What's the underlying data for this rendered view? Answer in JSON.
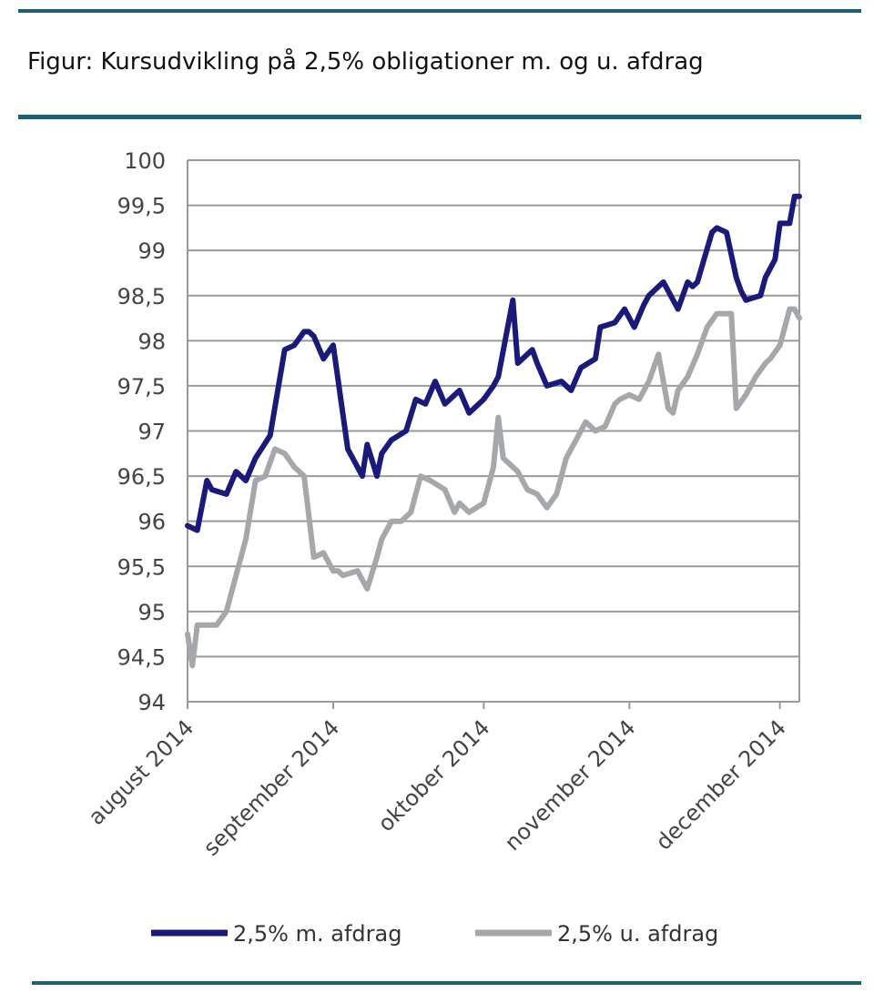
{
  "title": "Figur: Kursudvikling på 2,5% obligationer m. og u. afdrag",
  "chart_data": {
    "type": "line",
    "title": "Figur: Kursudvikling på 2,5% obligationer m. og u. afdrag",
    "xlabel": "",
    "ylabel": "",
    "ylim": [
      94,
      100
    ],
    "yticks": [
      {
        "value": 94,
        "label": "94"
      },
      {
        "value": 94.5,
        "label": "94,5"
      },
      {
        "value": 95,
        "label": "95"
      },
      {
        "value": 95.5,
        "label": "95,5"
      },
      {
        "value": 96,
        "label": "96"
      },
      {
        "value": 96.5,
        "label": "96,5"
      },
      {
        "value": 97,
        "label": "97"
      },
      {
        "value": 97.5,
        "label": "97,5"
      },
      {
        "value": 98,
        "label": "98"
      },
      {
        "value": 98.5,
        "label": "98,5"
      },
      {
        "value": 99,
        "label": "99"
      },
      {
        "value": 99.5,
        "label": "99,5"
      },
      {
        "value": 100,
        "label": "100"
      }
    ],
    "xlim": [
      0,
      126
    ],
    "xticks": [
      {
        "value": 0,
        "label": "august 2014"
      },
      {
        "value": 30,
        "label": "september 2014"
      },
      {
        "value": 61,
        "label": "oktober 2014"
      },
      {
        "value": 91,
        "label": "november 2014"
      },
      {
        "value": 122,
        "label": "december 2014"
      }
    ],
    "grid": true,
    "legend_position": "bottom",
    "series": [
      {
        "name": "2,5% m. afdrag",
        "color": "#1a1a7a",
        "x": [
          0,
          2,
          4,
          5,
          8,
          10,
          12,
          14,
          17,
          20,
          22,
          24,
          25,
          26,
          28,
          30,
          33,
          35,
          36,
          37,
          39,
          40,
          42,
          45,
          47,
          49,
          51,
          53,
          56,
          58,
          61,
          63,
          64,
          67,
          68,
          71,
          72,
          74,
          77,
          79,
          81,
          84,
          85,
          88,
          90,
          92,
          94,
          95,
          97,
          98,
          101,
          103,
          104,
          105,
          108,
          109,
          111,
          113,
          114,
          115,
          118,
          119,
          121,
          122,
          124,
          125,
          126
        ],
        "values": [
          95.95,
          95.9,
          96.45,
          96.35,
          96.3,
          96.55,
          96.45,
          96.7,
          96.95,
          97.9,
          97.95,
          98.1,
          98.1,
          98.05,
          97.8,
          97.95,
          96.8,
          96.6,
          96.5,
          96.85,
          96.5,
          96.75,
          96.9,
          97.0,
          97.35,
          97.3,
          97.55,
          97.3,
          97.45,
          97.2,
          97.35,
          97.5,
          97.6,
          98.45,
          97.75,
          97.9,
          97.75,
          97.5,
          97.55,
          97.45,
          97.7,
          97.8,
          98.15,
          98.2,
          98.35,
          98.15,
          98.4,
          98.5,
          98.6,
          98.65,
          98.35,
          98.65,
          98.6,
          98.65,
          99.2,
          99.25,
          99.2,
          98.7,
          98.55,
          98.45,
          98.5,
          98.7,
          98.9,
          99.3,
          99.3,
          99.6,
          99.6
        ]
      },
      {
        "name": "2,5% u. afdrag",
        "color": "#a5a8aa",
        "x": [
          0,
          1,
          2,
          3,
          6,
          8,
          10,
          12,
          14,
          16,
          18,
          20,
          22,
          24,
          26,
          28,
          30,
          31,
          32,
          35,
          37,
          39,
          40,
          42,
          44,
          46,
          48,
          50,
          53,
          55,
          56,
          58,
          61,
          63,
          64,
          65,
          66,
          68,
          70,
          72,
          74,
          76,
          78,
          80,
          82,
          84,
          86,
          88,
          89,
          91,
          93,
          95,
          97,
          99,
          100,
          101,
          103,
          105,
          107,
          109,
          110,
          112,
          113,
          115,
          117,
          119,
          120,
          122,
          124,
          125,
          126
        ],
        "values": [
          94.75,
          94.4,
          94.85,
          94.85,
          94.85,
          95.0,
          95.4,
          95.8,
          96.45,
          96.5,
          96.8,
          96.75,
          96.6,
          96.5,
          95.6,
          95.65,
          95.45,
          95.45,
          95.4,
          95.45,
          95.25,
          95.6,
          95.8,
          96.0,
          96.0,
          96.1,
          96.5,
          96.45,
          96.35,
          96.1,
          96.2,
          96.1,
          96.2,
          96.6,
          97.15,
          96.7,
          96.65,
          96.55,
          96.35,
          96.3,
          96.15,
          96.3,
          96.7,
          96.9,
          97.1,
          97.0,
          97.05,
          97.3,
          97.35,
          97.4,
          97.35,
          97.55,
          97.85,
          97.25,
          97.2,
          97.45,
          97.6,
          97.85,
          98.15,
          98.3,
          98.3,
          98.3,
          97.25,
          97.4,
          97.6,
          97.75,
          97.8,
          97.95,
          98.35,
          98.35,
          98.25
        ]
      }
    ]
  }
}
